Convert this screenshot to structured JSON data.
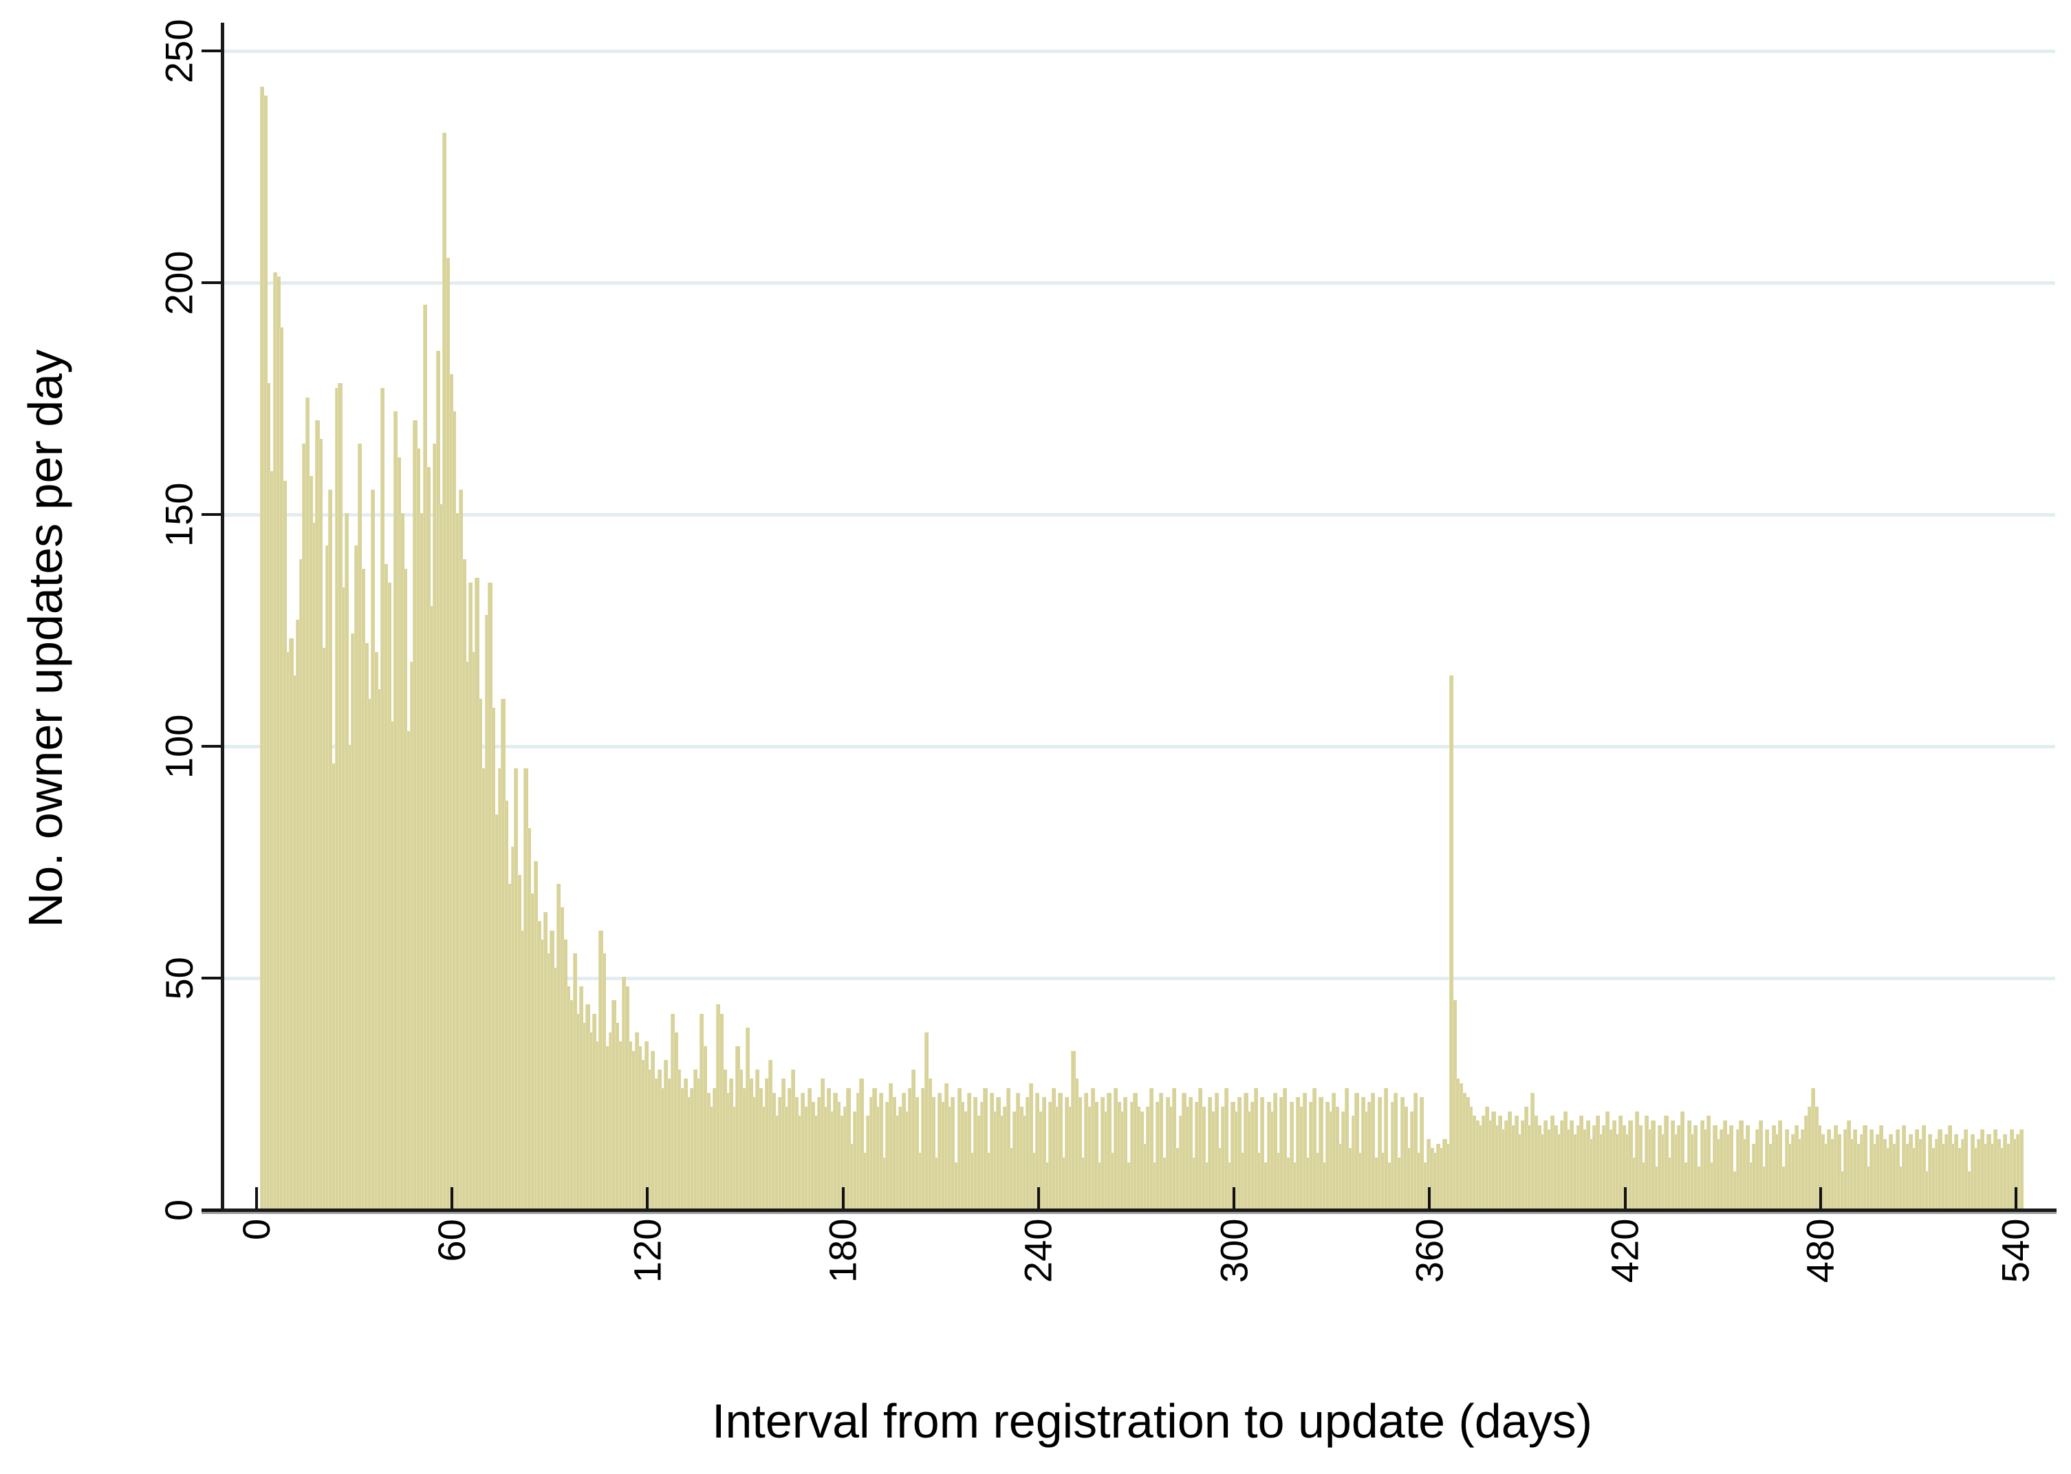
{
  "chart_data": {
    "type": "bar",
    "title": "",
    "xlabel": "Interval from registration to update (days)",
    "ylabel": "No. owner updates per day",
    "x_ticks": [
      0,
      60,
      120,
      180,
      240,
      300,
      360,
      420,
      480,
      540
    ],
    "y_ticks": [
      0,
      50,
      100,
      150,
      200,
      250
    ],
    "xlim": [
      0,
      540
    ],
    "ylim": [
      0,
      250
    ],
    "grid": true,
    "gridline_values": [
      50,
      100,
      150,
      200,
      250
    ],
    "legend_position": "none",
    "x_first_bin_day": 1,
    "bin_width_days": 1,
    "values": [
      242,
      240,
      178,
      159,
      202,
      201,
      190,
      157,
      120,
      123,
      115,
      127,
      140,
      165,
      175,
      158,
      148,
      170,
      166,
      121,
      143,
      155,
      96,
      177,
      178,
      134,
      150,
      100,
      124,
      143,
      165,
      138,
      122,
      110,
      155,
      120,
      112,
      177,
      139,
      135,
      105,
      172,
      162,
      150,
      138,
      103,
      118,
      170,
      164,
      150,
      195,
      160,
      130,
      165,
      185,
      152,
      232,
      205,
      180,
      172,
      150,
      155,
      140,
      118,
      135,
      120,
      136,
      110,
      95,
      128,
      135,
      108,
      85,
      95,
      110,
      88,
      70,
      78,
      95,
      72,
      60,
      95,
      82,
      68,
      75,
      62,
      58,
      64,
      55,
      60,
      52,
      70,
      65,
      58,
      48,
      45,
      55,
      42,
      48,
      40,
      44,
      38,
      42,
      36,
      60,
      55,
      35,
      38,
      45,
      40,
      36,
      50,
      48,
      36,
      34,
      38,
      35,
      32,
      36,
      30,
      34,
      28,
      30,
      26,
      32,
      28,
      42,
      38,
      30,
      26,
      28,
      24,
      26,
      30,
      28,
      42,
      35,
      25,
      22,
      26,
      44,
      42,
      30,
      25,
      28,
      22,
      35,
      30,
      26,
      39,
      28,
      24,
      30,
      26,
      22,
      28,
      32,
      25,
      20,
      24,
      28,
      22,
      26,
      30,
      24,
      20,
      25,
      22,
      26,
      23,
      20,
      24,
      28,
      22,
      26,
      21,
      25,
      23,
      20,
      22,
      26,
      14,
      21,
      25,
      28,
      12,
      20,
      24,
      26,
      22,
      25,
      11,
      23,
      27,
      24,
      20,
      22,
      25,
      21,
      26,
      30,
      24,
      12,
      26,
      38,
      28,
      24,
      11,
      25,
      23,
      27,
      22,
      24,
      10,
      26,
      23,
      21,
      25,
      12,
      24,
      20,
      23,
      26,
      12,
      25,
      21,
      24,
      20,
      22,
      26,
      13,
      21,
      25,
      22,
      20,
      24,
      27,
      12,
      25,
      21,
      24,
      10,
      23,
      26,
      22,
      25,
      11,
      24,
      22,
      34,
      28,
      24,
      11,
      25,
      22,
      26,
      23,
      10,
      24,
      21,
      25,
      12,
      26,
      23,
      21,
      24,
      10,
      23,
      25,
      22,
      21,
      14,
      22,
      26,
      10,
      23,
      25,
      11,
      24,
      22,
      26,
      13,
      20,
      25,
      22,
      24,
      11,
      23,
      26,
      22,
      10,
      24,
      21,
      25,
      13,
      22,
      26,
      10,
      23,
      21,
      24,
      12,
      25,
      21,
      23,
      26,
      12,
      24,
      10,
      23,
      21,
      25,
      12,
      24,
      26,
      11,
      23,
      10,
      24,
      22,
      25,
      11,
      23,
      26,
      12,
      24,
      10,
      23,
      21,
      25,
      22,
      14,
      21,
      26,
      13,
      20,
      25,
      12,
      24,
      21,
      23,
      25,
      11,
      24,
      12,
      26,
      10,
      23,
      25,
      11,
      24,
      22,
      13,
      21,
      25,
      12,
      24,
      10,
      15,
      13,
      12,
      14,
      13,
      15,
      14,
      115,
      45,
      28,
      27,
      25,
      24,
      22,
      20,
      19,
      18,
      20,
      22,
      19,
      21,
      18,
      20,
      17,
      19,
      21,
      18,
      20,
      16,
      19,
      22,
      18,
      25,
      20,
      18,
      16,
      19,
      17,
      20,
      18,
      16,
      19,
      21,
      17,
      19,
      16,
      18,
      20,
      17,
      19,
      15,
      18,
      20,
      16,
      18,
      21,
      17,
      19,
      16,
      20,
      18,
      16,
      19,
      11,
      21,
      18,
      10,
      20,
      17,
      19,
      9,
      18,
      16,
      20,
      11,
      19,
      16,
      18,
      21,
      10,
      19,
      16,
      18,
      9,
      19,
      17,
      20,
      10,
      18,
      15,
      17,
      19,
      16,
      18,
      8,
      17,
      19,
      15,
      18,
      10,
      14,
      17,
      19,
      9,
      17,
      14,
      18,
      16,
      19,
      9,
      17,
      14,
      16,
      18,
      15,
      17,
      20,
      22,
      26,
      22,
      18,
      16,
      14,
      17,
      15,
      18,
      16,
      8,
      17,
      19,
      15,
      17,
      14,
      16,
      18,
      9,
      17,
      14,
      16,
      18,
      15,
      13,
      16,
      14,
      17,
      9,
      18,
      14,
      16,
      13,
      17,
      15,
      18,
      8,
      16,
      13,
      15,
      17,
      14,
      16,
      18,
      14,
      16,
      13,
      15,
      17,
      8,
      16,
      13,
      15,
      17,
      14,
      16,
      14,
      17,
      15,
      13,
      16,
      14,
      17,
      15,
      16,
      17
    ],
    "bar_color": "#d8d39b",
    "bar_seam_color": "#e3dfae",
    "grid_color": "#e2edf1",
    "axis_color": "#1a1a1a",
    "text_color": "#000000",
    "background_color": "#ffffff"
  }
}
